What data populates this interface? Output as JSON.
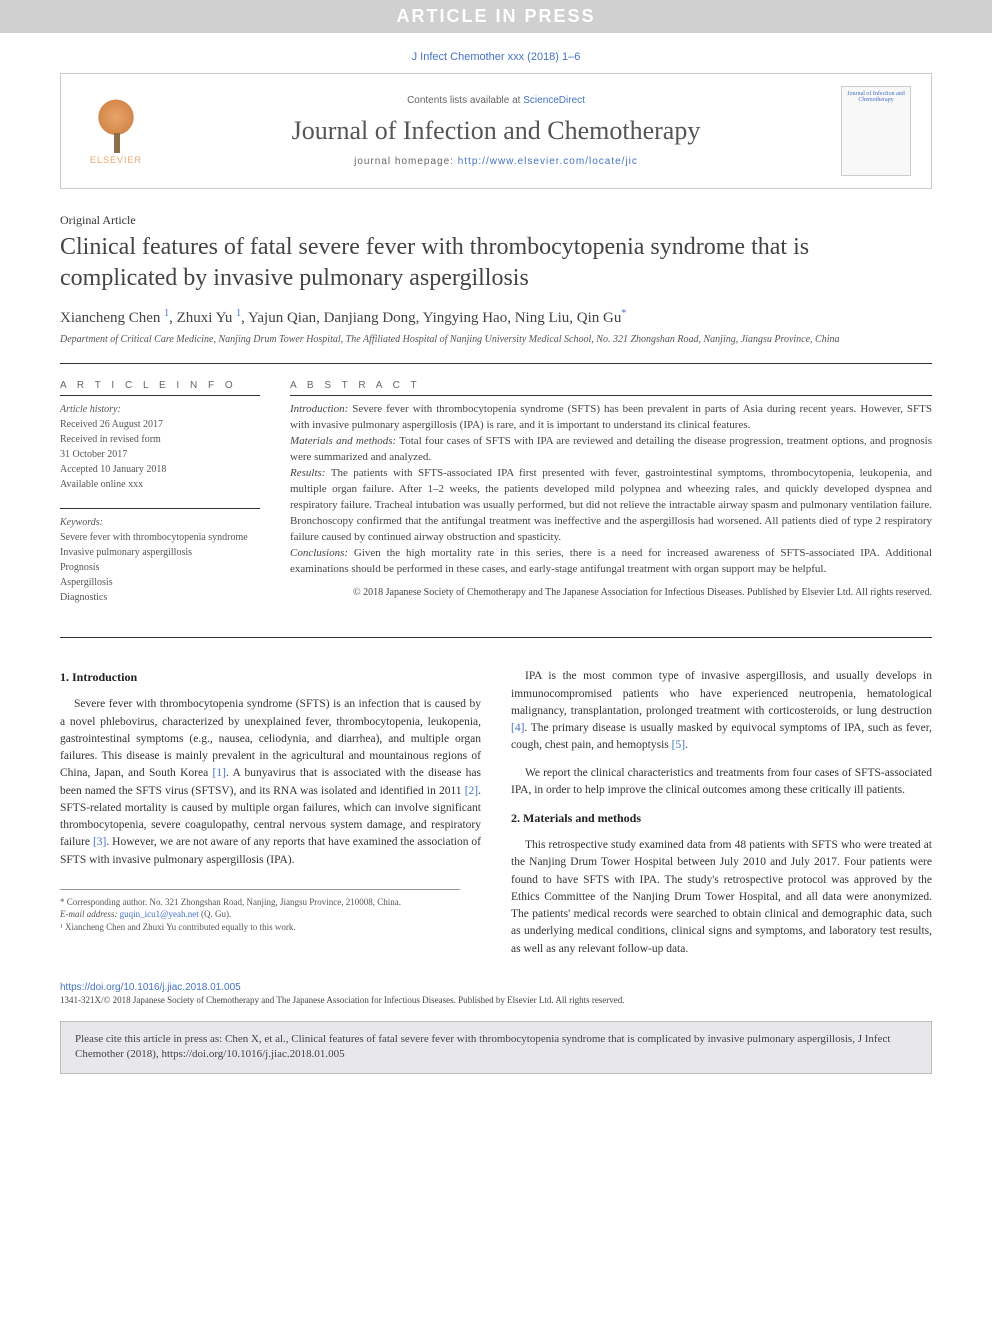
{
  "banner": {
    "in_press": "ARTICLE IN PRESS",
    "citation": "J Infect Chemother xxx (2018) 1–6"
  },
  "header": {
    "contents_prefix": "Contents lists available at ",
    "contents_link": "ScienceDirect",
    "journal_name": "Journal of Infection and Chemotherapy",
    "homepage_prefix": "journal homepage: ",
    "homepage_url": "http://www.elsevier.com/locate/jic",
    "elsevier_label": "ELSEVIER",
    "cover_text": "Journal of Infection and Chemotherapy"
  },
  "article": {
    "type": "Original Article",
    "title": "Clinical features of fatal severe fever with thrombocytopenia syndrome that is complicated by invasive pulmonary aspergillosis",
    "authors_html": "Xiancheng Chen <sup>1</sup>, Zhuxi Yu <sup>1</sup>, Yajun Qian, Danjiang Dong, Yingying Hao, Ning Liu, Qin Gu<sup>*</sup>",
    "affiliation": "Department of Critical Care Medicine, Nanjing Drum Tower Hospital, The Affiliated Hospital of Nanjing University Medical School, No. 321 Zhongshan Road, Nanjing, Jiangsu Province, China"
  },
  "info": {
    "heading": "A R T I C L E  I N F O",
    "history_label": "Article history:",
    "history": [
      "Received 26 August 2017",
      "Received in revised form",
      "31 October 2017",
      "Accepted 10 January 2018",
      "Available online xxx"
    ],
    "keywords_label": "Keywords:",
    "keywords": [
      "Severe fever with thrombocytopenia syndrome",
      "Invasive pulmonary aspergillosis",
      "Prognosis",
      "Aspergillosis",
      "Diagnostics"
    ]
  },
  "abstract": {
    "heading": "A B S T R A C T",
    "intro_label": "Introduction:",
    "intro": " Severe fever with thrombocytopenia syndrome (SFTS) has been prevalent in parts of Asia during recent years. However, SFTS with invasive pulmonary aspergillosis (IPA) is rare, and it is important to understand its clinical features.",
    "methods_label": "Materials and methods:",
    "methods": " Total four cases of SFTS with IPA are reviewed and detailing the disease progression, treatment options, and prognosis were summarized and analyzed.",
    "results_label": "Results:",
    "results": " The patients with SFTS-associated IPA first presented with fever, gastrointestinal symptoms, thrombocytopenia, leukopenia, and multiple organ failure. After 1–2 weeks, the patients developed mild polypnea and wheezing rales, and quickly developed dyspnea and respiratory failure. Tracheal intubation was usually performed, but did not relieve the intractable airway spasm and pulmonary ventilation failure. Bronchoscopy confirmed that the antifungal treatment was ineffective and the aspergillosis had worsened. All patients died of type 2 respiratory failure caused by continued airway obstruction and spasticity.",
    "conclusions_label": "Conclusions:",
    "conclusions": " Given the high mortality rate in this series, there is a need for increased awareness of SFTS-associated IPA. Additional examinations should be performed in these cases, and early-stage antifungal treatment with organ support may be helpful.",
    "copyright": "© 2018 Japanese Society of Chemotherapy and The Japanese Association for Infectious Diseases. Published by Elsevier Ltd. All rights reserved."
  },
  "body": {
    "section1_heading": "1. Introduction",
    "section1_p1": "Severe fever with thrombocytopenia syndrome (SFTS) is an infection that is caused by a novel phlebovirus, characterized by unexplained fever, thrombocytopenia, leukopenia, gastrointestinal symptoms (e.g., nausea, celiodynia, and diarrhea), and multiple organ failures. This disease is mainly prevalent in the agricultural and mountainous regions of China, Japan, and South Korea ",
    "ref1": "[1]",
    "section1_p1b": ". A bunyavirus that is associated with the disease has been named the SFTS virus (SFTSV), and its RNA was isolated and identified in 2011 ",
    "ref2": "[2]",
    "section1_p1c": ". SFTS-related mortality is caused by multiple organ failures, which can involve significant thrombocytopenia, severe coagulopathy, central nervous system damage, and respiratory failure ",
    "ref3": "[3]",
    "section1_p1d": ". However, we are not aware of any reports that have examined the association of SFTS with invasive pulmonary aspergillosis (IPA).",
    "col2_p1": "IPA is the most common type of invasive aspergillosis, and usually develops in immunocompromised patients who have experienced neutropenia, hematological malignancy, transplantation, prolonged treatment with corticosteroids, or lung destruction ",
    "ref4": "[4]",
    "col2_p1b": ". The primary disease is usually masked by equivocal symptoms of IPA, such as fever, cough, chest pain, and hemoptysis ",
    "ref5": "[5]",
    "col2_p1c": ".",
    "col2_p2": "We report the clinical characteristics and treatments from four cases of SFTS-associated IPA, in order to help improve the clinical outcomes among these critically ill patients.",
    "section2_heading": "2. Materials and methods",
    "section2_p1": "This retrospective study examined data from 48 patients with SFTS who were treated at the Nanjing Drum Tower Hospital between July 2010 and July 2017. Four patients were found to have SFTS with IPA. The study's retrospective protocol was approved by the Ethics Committee of the Nanjing Drum Tower Hospital, and all data were anonymized. The patients' medical records were searched to obtain clinical and demographic data, such as underlying medical conditions, clinical signs and symptoms, and laboratory test results, as well as any relevant follow-up data."
  },
  "footnotes": {
    "corresponding": "* Corresponding author. No. 321 Zhongshan Road, Nanjing, Jiangsu Province, 210008, China.",
    "email_label": "E-mail address: ",
    "email": "guqin_icu1@yeah.net",
    "email_suffix": " (Q. Gu).",
    "contrib": "¹ Xiancheng Chen and Zhuxi Yu contributed equally to this work."
  },
  "footer": {
    "doi": "https://doi.org/10.1016/j.jiac.2018.01.005",
    "copyright": "1341-321X/© 2018 Japanese Society of Chemotherapy and The Japanese Association for Infectious Diseases. Published by Elsevier Ltd. All rights reserved.",
    "cite_box": "Please cite this article in press as: Chen X, et al., Clinical features of fatal severe fever with thrombocytopenia syndrome that is complicated by invasive pulmonary aspergillosis, J Infect Chemother (2018), https://doi.org/10.1016/j.jiac.2018.01.005"
  },
  "colors": {
    "link": "#4472c4",
    "text": "#333333",
    "banner_bg": "#d0d0d0",
    "cite_bg": "#e8e8ec"
  }
}
